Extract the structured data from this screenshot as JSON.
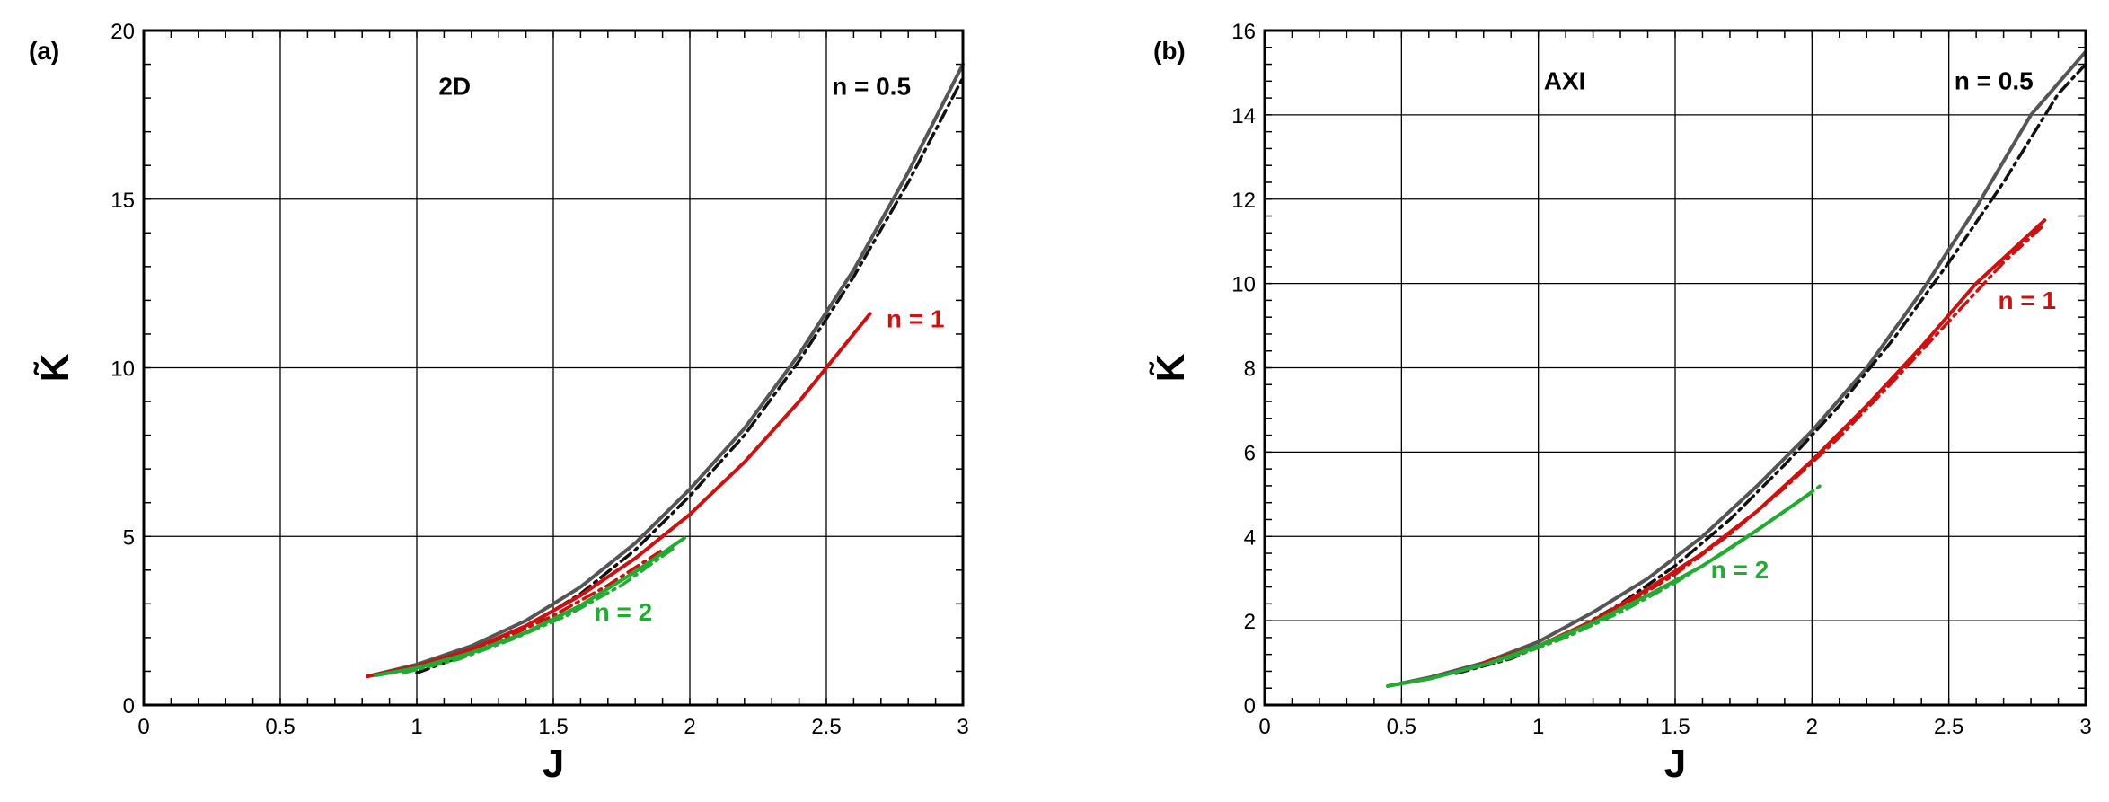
{
  "chart_data": [
    {
      "type": "line",
      "panel_label": "(a)",
      "xlabel": "J",
      "ylabel": "K̃",
      "xlim": [
        0,
        3
      ],
      "ylim": [
        0,
        20
      ],
      "xticks": [
        "0",
        "0.5",
        "1",
        "1.5",
        "2",
        "2.5",
        "3"
      ],
      "yticks": [
        "0",
        "5",
        "10",
        "15",
        "20"
      ],
      "grid": true,
      "annotations": [
        {
          "text": "2D",
          "x": 1.08,
          "y": 18.1,
          "color": "#000000"
        },
        {
          "text": "n = 0.5",
          "x": 2.52,
          "y": 18.1,
          "color": "#000000"
        },
        {
          "text": "n = 1",
          "x": 2.72,
          "y": 11.2,
          "color": "#cc1111"
        },
        {
          "text": "n = 2",
          "x": 1.65,
          "y": 2.5,
          "color": "#22aa33"
        }
      ],
      "series": [
        {
          "name": "n = 0.5",
          "color": "#555555",
          "style": "solid",
          "x": [
            0.82,
            1.0,
            1.2,
            1.4,
            1.6,
            1.8,
            2.0,
            2.2,
            2.4,
            2.6,
            2.8,
            3.0
          ],
          "y": [
            0.85,
            1.2,
            1.75,
            2.5,
            3.5,
            4.8,
            6.4,
            8.2,
            10.4,
            12.9,
            15.8,
            19.0
          ]
        },
        {
          "name": "n = 0.5",
          "color": "#111111",
          "style": "dashdot",
          "x": [
            1.0,
            1.2,
            1.4,
            1.6,
            1.8,
            2.0,
            2.2,
            2.4,
            2.6,
            2.8,
            3.0
          ],
          "y": [
            0.95,
            1.55,
            2.3,
            3.3,
            4.6,
            6.2,
            8.0,
            10.2,
            12.7,
            15.5,
            18.6
          ]
        },
        {
          "name": "n = 1",
          "color": "#cc1111",
          "style": "solid",
          "x": [
            0.82,
            1.0,
            1.2,
            1.4,
            1.6,
            1.8,
            2.0,
            2.2,
            2.4,
            2.66
          ],
          "y": [
            0.85,
            1.15,
            1.65,
            2.35,
            3.25,
            4.35,
            5.65,
            7.2,
            9.0,
            11.6
          ]
        },
        {
          "name": "n = 1",
          "color": "#cc1111",
          "style": "dashdot",
          "x": [
            0.9,
            1.1,
            1.3,
            1.5,
            1.7,
            1.9
          ],
          "y": [
            0.95,
            1.35,
            1.9,
            2.65,
            3.55,
            4.6
          ]
        },
        {
          "name": "n = 2",
          "color": "#22aa33",
          "style": "solid",
          "x": [
            0.85,
            1.0,
            1.2,
            1.4,
            1.6,
            1.8,
            1.98
          ],
          "y": [
            0.88,
            1.1,
            1.55,
            2.15,
            2.95,
            3.95,
            4.95
          ]
        },
        {
          "name": "n = 2",
          "color": "#22aa33",
          "style": "dashdot",
          "x": [
            0.95,
            1.15,
            1.35,
            1.55,
            1.75,
            1.95
          ],
          "y": [
            0.95,
            1.35,
            1.95,
            2.65,
            3.55,
            4.7
          ]
        }
      ]
    },
    {
      "type": "line",
      "panel_label": "(b)",
      "xlabel": "J",
      "ylabel": "K̃",
      "xlim": [
        0,
        3
      ],
      "ylim": [
        0,
        16
      ],
      "xticks": [
        "0",
        "0.5",
        "1",
        "1.5",
        "2",
        "2.5",
        "3"
      ],
      "yticks": [
        "0",
        "2",
        "4",
        "6",
        "8",
        "10",
        "12",
        "14",
        "16"
      ],
      "grid": true,
      "annotations": [
        {
          "text": "AXI",
          "x": 1.02,
          "y": 14.6,
          "color": "#000000"
        },
        {
          "text": "n = 0.5",
          "x": 2.52,
          "y": 14.6,
          "color": "#000000"
        },
        {
          "text": "n = 1",
          "x": 2.68,
          "y": 9.4,
          "color": "#cc1111"
        },
        {
          "text": "n = 2",
          "x": 1.63,
          "y": 3.0,
          "color": "#22aa33"
        }
      ],
      "series": [
        {
          "name": "n = 0.5",
          "color": "#555555",
          "style": "solid",
          "x": [
            0.45,
            0.6,
            0.8,
            1.0,
            1.2,
            1.4,
            1.6,
            1.8,
            2.0,
            2.2,
            2.4,
            2.6,
            2.8,
            3.0
          ],
          "y": [
            0.45,
            0.65,
            1.0,
            1.5,
            2.2,
            3.0,
            4.0,
            5.2,
            6.5,
            8.0,
            9.8,
            11.8,
            14.0,
            15.5
          ]
        },
        {
          "name": "n = 0.5",
          "color": "#111111",
          "style": "dashdot",
          "x": [
            0.7,
            0.9,
            1.1,
            1.3,
            1.5,
            1.7,
            1.9,
            2.1,
            2.3,
            2.5,
            2.7,
            2.9,
            3.0
          ],
          "y": [
            0.75,
            1.1,
            1.65,
            2.4,
            3.3,
            4.4,
            5.7,
            7.1,
            8.7,
            10.5,
            12.4,
            14.5,
            15.2
          ]
        },
        {
          "name": "n = 1",
          "color": "#cc1111",
          "style": "solid",
          "x": [
            0.8,
            1.0,
            1.2,
            1.4,
            1.6,
            1.8,
            2.0,
            2.2,
            2.4,
            2.6,
            2.85
          ],
          "y": [
            1.0,
            1.4,
            2.0,
            2.75,
            3.6,
            4.6,
            5.8,
            7.1,
            8.5,
            10.0,
            11.5
          ]
        },
        {
          "name": "n = 1",
          "color": "#cc1111",
          "style": "dashdot",
          "x": [
            0.9,
            1.1,
            1.3,
            1.5,
            1.7,
            1.9,
            2.1,
            2.3,
            2.5,
            2.7,
            2.85
          ],
          "y": [
            1.15,
            1.65,
            2.3,
            3.1,
            4.05,
            5.15,
            6.35,
            7.7,
            9.1,
            10.5,
            11.4
          ]
        },
        {
          "name": "n = 2",
          "color": "#22aa33",
          "style": "solid",
          "x": [
            0.45,
            0.6,
            0.8,
            1.0,
            1.2,
            1.4,
            1.6,
            1.8,
            2.0
          ],
          "y": [
            0.45,
            0.62,
            0.95,
            1.4,
            1.95,
            2.6,
            3.3,
            4.15,
            5.05
          ]
        },
        {
          "name": "n = 2",
          "color": "#22aa33",
          "style": "dashdot",
          "x": [
            0.7,
            0.9,
            1.1,
            1.3,
            1.5,
            1.7,
            1.9,
            2.03
          ],
          "y": [
            0.78,
            1.12,
            1.6,
            2.2,
            2.9,
            3.7,
            4.6,
            5.2
          ]
        }
      ]
    }
  ]
}
